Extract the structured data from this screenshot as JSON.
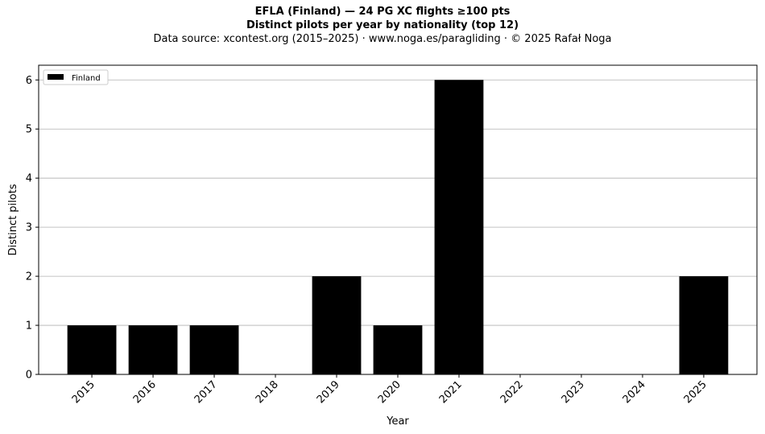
{
  "header": {
    "title_line1": "EFLA (Finland)  —  24 PG XC flights ≥100 pts",
    "title_line2": "Distinct pilots per year by nationality (top 12)",
    "subtitle": "Data source: xcontest.org (2015–2025)  ·  www.noga.es/paragliding  ·  © 2025 Rafał Noga"
  },
  "chart_data": {
    "type": "bar",
    "title": "EFLA (Finland)  —  24 PG XC flights ≥100 pts",
    "subtitle": "Distinct pilots per year by nationality (top 12)",
    "xlabel": "Year",
    "ylabel": "Distinct pilots",
    "categories": [
      "2015",
      "2016",
      "2017",
      "2018",
      "2019",
      "2020",
      "2021",
      "2022",
      "2023",
      "2024",
      "2025"
    ],
    "series": [
      {
        "name": "Finland",
        "values": [
          1,
          1,
          1,
          0,
          2,
          1,
          6,
          0,
          0,
          0,
          2
        ],
        "color": "#000000"
      }
    ],
    "ylim": [
      0,
      6.3
    ],
    "yticks": [
      0,
      1,
      2,
      3,
      4,
      5,
      6
    ],
    "grid": "y",
    "legend": "top-left",
    "grid_color": "#b0b0b0"
  }
}
